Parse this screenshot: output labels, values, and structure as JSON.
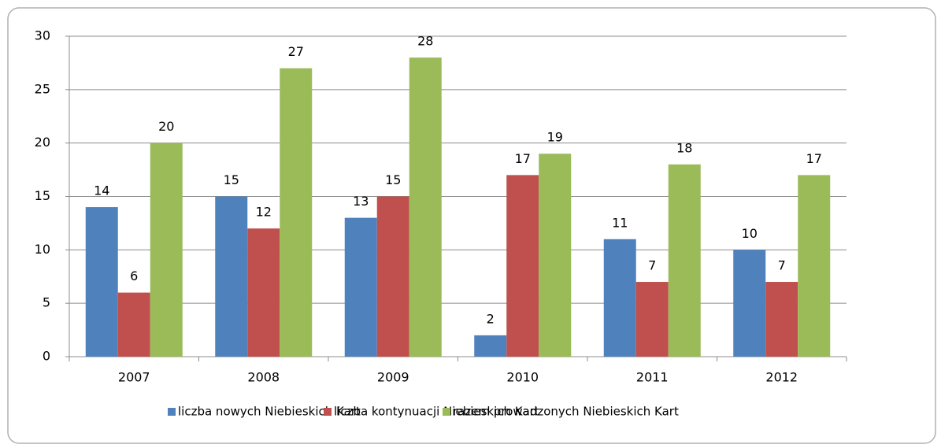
{
  "chart_data": {
    "type": "bar",
    "categories": [
      "2007",
      "2008",
      "2009",
      "2010",
      "2011",
      "2012"
    ],
    "series": [
      {
        "name": "liczba nowych Niebieskich Kart",
        "color": "#4f81bd",
        "values": [
          14,
          15,
          13,
          2,
          11,
          10
        ]
      },
      {
        "name": "liczba kontynuacji Niebieskich Kart",
        "color": "#c0504d",
        "values": [
          6,
          12,
          15,
          17,
          7,
          7
        ]
      },
      {
        "name": "razem prowadzonych Niebieskich Kart",
        "color": "#9bbb59",
        "values": [
          20,
          27,
          28,
          19,
          18,
          17
        ]
      }
    ],
    "ylim": [
      0,
      30
    ],
    "yticks": [
      0,
      5,
      10,
      15,
      20,
      25,
      30
    ],
    "grid": true,
    "legend": "bottom"
  }
}
